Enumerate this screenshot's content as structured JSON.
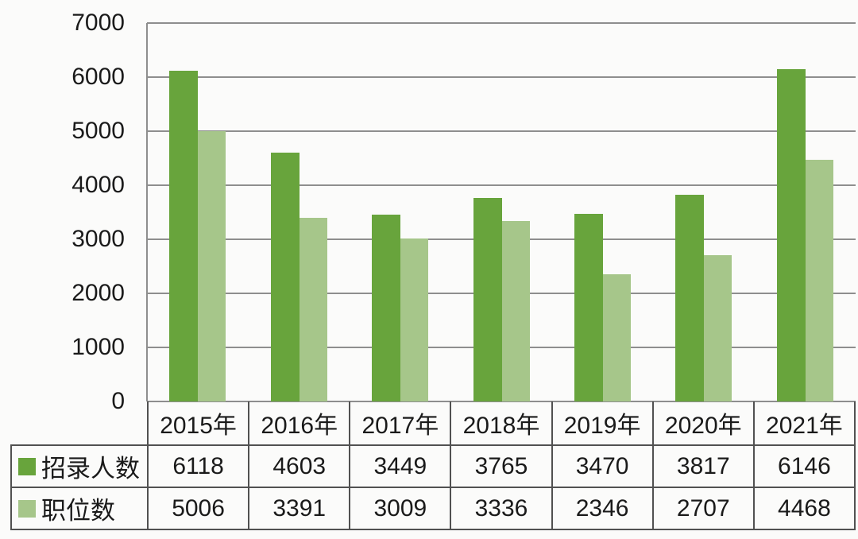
{
  "chart_data": {
    "type": "bar",
    "title": "",
    "xlabel": "",
    "ylabel": "",
    "categories": [
      "2015年",
      "2016年",
      "2017年",
      "2018年",
      "2019年",
      "2020年",
      "2021年"
    ],
    "series": [
      {
        "name": "招录人数",
        "color": "#68a43c",
        "values": [
          6118,
          4603,
          3449,
          3765,
          3470,
          3817,
          6146
        ]
      },
      {
        "name": "职位数",
        "color": "#a6c68a",
        "values": [
          5006,
          3391,
          3009,
          3336,
          2346,
          2707,
          4468
        ]
      }
    ],
    "ylim": [
      0,
      7000
    ],
    "yticks": [
      0,
      1000,
      2000,
      3000,
      4000,
      5000,
      6000,
      7000
    ],
    "grid": true,
    "legend_position": "table-rows-left"
  },
  "colors": {
    "background": "#fbfbfa",
    "series1": "#68a43c",
    "series2": "#a6c68a",
    "gridline": "#8e8e8e",
    "table_border": "#515151",
    "text": "#1a1a1a"
  }
}
